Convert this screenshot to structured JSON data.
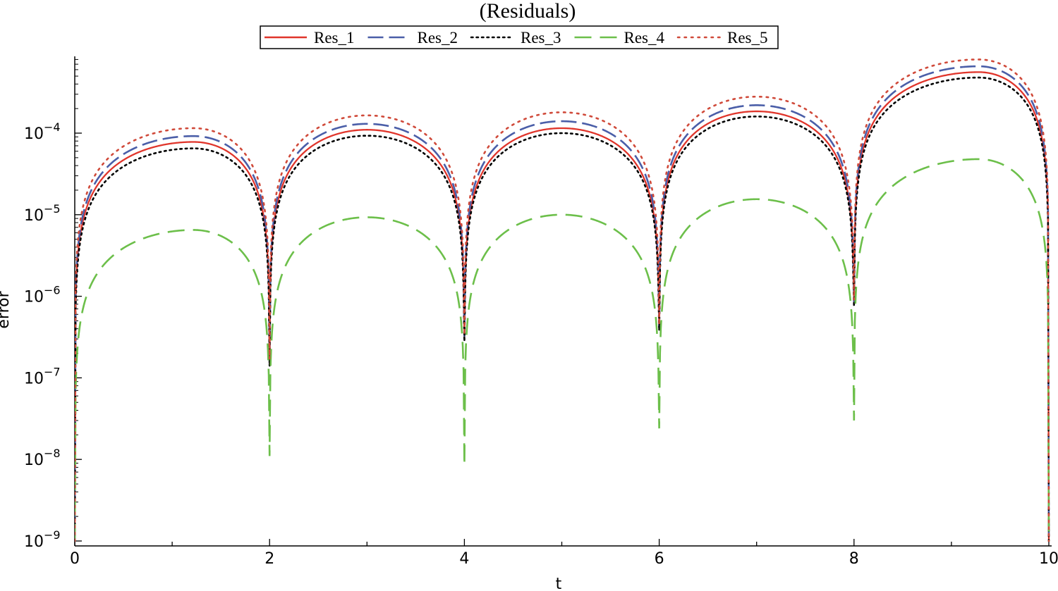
{
  "chart_data": {
    "type": "line",
    "title": "(Residuals)",
    "xlabel": "t",
    "ylabel": "error",
    "xlim": [
      0,
      10
    ],
    "ylim": [
      1e-09,
      0.001
    ],
    "y_scale": "log",
    "legend_position": "top-center",
    "x_tick_labels": [
      "0",
      "2",
      "4",
      "6",
      "8",
      "10"
    ],
    "y_tick_labels": [
      {
        "base": "10",
        "exp": "−9"
      },
      {
        "base": "10",
        "exp": "−8"
      },
      {
        "base": "10",
        "exp": "−7"
      },
      {
        "base": "10",
        "exp": "−6"
      },
      {
        "base": "10",
        "exp": "−5"
      },
      {
        "base": "10",
        "exp": "−4"
      }
    ],
    "series": [
      {
        "name": "Res_1",
        "color": "#e0352b",
        "style": "solid",
        "peaks": [
          7.8e-05,
          0.00011,
          0.000115,
          0.000185,
          0.00056
        ],
        "mins": [
          1.5e-07,
          3e-07,
          4e-07,
          8e-07
        ]
      },
      {
        "name": "Res_2",
        "color": "#4a5ea8",
        "style": "dash",
        "peaks": [
          9.2e-05,
          0.00013,
          0.00014,
          0.00022,
          0.00066
        ],
        "mins": [
          1.6e-07,
          3.2e-07,
          4.2e-07,
          8.5e-07
        ]
      },
      {
        "name": "Res_3",
        "color": "#000000",
        "style": "dot",
        "peaks": [
          6.5e-05,
          9.3e-05,
          0.0001,
          0.00016,
          0.00048
        ],
        "mins": [
          1.4e-07,
          2.8e-07,
          3.8e-07,
          7.5e-07
        ]
      },
      {
        "name": "Res_4",
        "color": "#6cbf4a",
        "style": "longdash",
        "peaks": [
          6.5e-06,
          9.3e-06,
          1e-05,
          1.55e-05,
          4.8e-05
        ],
        "mins": [
          1.1e-08,
          8.5e-09,
          2.4e-08,
          3e-08
        ]
      },
      {
        "name": "Res_5",
        "color": "#d04a3a",
        "style": "sparsedot",
        "peaks": [
          0.000115,
          0.000165,
          0.00018,
          0.00028,
          0.0008
        ],
        "mins": [
          1.7e-07,
          3.4e-07,
          4.5e-07,
          9e-07
        ]
      }
    ],
    "x_zero_crossings": [
      0,
      2,
      4,
      6,
      8,
      10
    ]
  }
}
